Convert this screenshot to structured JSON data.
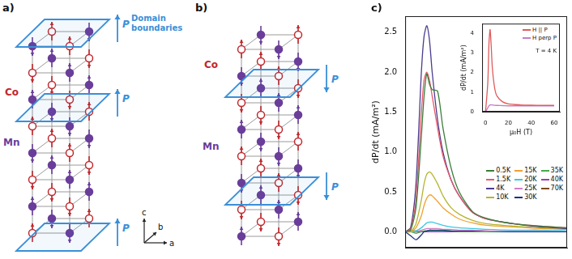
{
  "diagram": {
    "panels": [
      {
        "label": "a)",
        "atoms": [
          "Co",
          "Mn"
        ],
        "plane_label": "P",
        "annotation": "Domain boundaries",
        "axes": [
          "a",
          "b",
          "c"
        ]
      },
      {
        "label": "b)",
        "atoms": [
          "Co",
          "Mn"
        ],
        "plane_label": "P"
      }
    ]
  },
  "chart_data": [
    {
      "type": "line",
      "panel_label": "c)",
      "y_label": "dP/dt (mA/m²)",
      "tick_labels": "y",
      "grid": false,
      "legend": "lower right",
      "xlim": [
        0,
        60
      ],
      "ylim": [
        -0.2,
        2.7
      ],
      "yticks": [
        {
          "value": 0,
          "label": "0.0"
        },
        0.5,
        {
          "value": 1,
          "label": "1.0"
        },
        1.5,
        {
          "value": 2,
          "label": "2.0"
        },
        2.5
      ],
      "x": [
        0,
        2,
        4,
        6,
        7,
        8,
        9,
        10,
        12,
        14,
        17,
        20,
        25,
        30,
        40,
        50,
        60
      ],
      "series": [
        {
          "name": "0.5K",
          "color": "#3a7d3a",
          "values": [
            0,
            0.02,
            0.3,
            1.2,
            1.7,
            1.98,
            1.85,
            1.78,
            1.76,
            1.3,
            0.8,
            0.5,
            0.25,
            0.17,
            0.1,
            0.07,
            0.05
          ]
        },
        {
          "name": "1.5K",
          "color": "#e8596b",
          "values": [
            0,
            0.03,
            0.4,
            1.5,
            1.9,
            2.0,
            1.9,
            1.7,
            1.3,
            0.95,
            0.65,
            0.45,
            0.24,
            0.16,
            0.1,
            0.07,
            0.05
          ]
        },
        {
          "name": "4K",
          "color": "#4b3c8f",
          "values": [
            0,
            0.05,
            0.6,
            2.0,
            2.45,
            2.58,
            2.4,
            2.0,
            1.4,
            1.0,
            0.65,
            0.45,
            0.24,
            0.16,
            0.1,
            0.06,
            0.04
          ]
        },
        {
          "name": "10K",
          "color": "#b5b531",
          "values": [
            0,
            0,
            0.1,
            0.4,
            0.6,
            0.72,
            0.75,
            0.72,
            0.6,
            0.45,
            0.3,
            0.22,
            0.14,
            0.1,
            0.07,
            0.05,
            0.04
          ]
        },
        {
          "name": "15K",
          "color": "#f0a030",
          "values": [
            0,
            0,
            0.05,
            0.2,
            0.33,
            0.42,
            0.46,
            0.45,
            0.38,
            0.3,
            0.22,
            0.16,
            0.11,
            0.08,
            0.06,
            0.04,
            0.03
          ]
        },
        {
          "name": "20K",
          "color": "#3ec8e0",
          "values": [
            0,
            0,
            0.01,
            0.05,
            0.08,
            0.11,
            0.12,
            0.12,
            0.1,
            0.08,
            0.06,
            0.05,
            0.04,
            0.03,
            0.02,
            0.02,
            0.01
          ]
        },
        {
          "name": "25K",
          "color": "#d17fc4",
          "values": [
            0,
            0,
            0,
            0.02,
            0.03,
            0.04,
            0.04,
            0.04,
            0.04,
            0.03,
            0.03,
            0.02,
            0.02,
            0.01,
            0.01,
            0.01,
            0.01
          ]
        },
        {
          "name": "30K",
          "color": "#1c2f8a",
          "values": [
            0,
            -0.05,
            -0.1,
            -0.04,
            0,
            0.01,
            0.02,
            0.02,
            0.02,
            0.02,
            0.01,
            0.01,
            0.01,
            0.01,
            0,
            0,
            0
          ]
        },
        {
          "name": "35K",
          "color": "#4aa84a",
          "values": [
            0,
            0,
            -0.02,
            0,
            0.01,
            0.01,
            0.01,
            0.01,
            0.01,
            0.01,
            0.01,
            0,
            0,
            0,
            0,
            0,
            0
          ]
        },
        {
          "name": "40K",
          "color": "#9b3fb5",
          "values": [
            0,
            0,
            0,
            0,
            0,
            0,
            0,
            0,
            0,
            0,
            0,
            0,
            0,
            0,
            0,
            0,
            0
          ]
        },
        {
          "name": "70K",
          "color": "#7a4a1c",
          "values": [
            0,
            0.01,
            0.01,
            0,
            0,
            0,
            0,
            0,
            0,
            0,
            0,
            0,
            0,
            0,
            0,
            0,
            0
          ]
        }
      ]
    },
    {
      "type": "line",
      "annotation": "T = 4 K",
      "x_label": "μ₀H (T)",
      "y_label": "dP/dt (mA/m²)",
      "grid": false,
      "legend": "upper right",
      "xlim": [
        -3,
        65
      ],
      "xticks": [
        0,
        20,
        40,
        60
      ],
      "ylim": [
        0,
        4.5
      ],
      "yticks": [
        0,
        1,
        2,
        3,
        4
      ],
      "x": [
        0,
        2,
        3,
        4,
        5,
        6,
        8,
        10,
        15,
        20,
        30,
        40,
        50,
        60
      ],
      "series": [
        {
          "name": "H || P",
          "color": "#e05a5a",
          "values": [
            0,
            1.5,
            3.5,
            4.2,
            3.3,
            2.2,
            1.2,
            0.8,
            0.5,
            0.4,
            0.35,
            0.33,
            0.32,
            0.32
          ]
        },
        {
          "name": "H perp P",
          "color": "#c27fc7",
          "values": [
            0,
            0.2,
            0.3,
            0.35,
            0.35,
            0.35,
            0.33,
            0.32,
            0.31,
            0.3,
            0.3,
            0.3,
            0.3,
            0.3
          ]
        }
      ]
    }
  ]
}
